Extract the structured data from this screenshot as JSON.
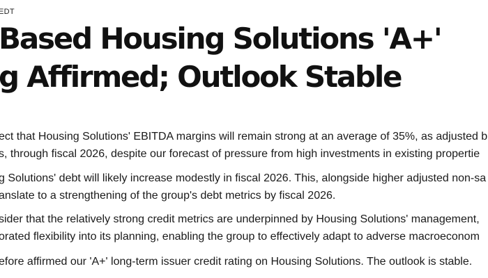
{
  "article": {
    "timestamp": "EDT",
    "headline": {
      "line1": "Based Housing Solutions 'A+'",
      "line2": "g Affirmed; Outlook Stable"
    },
    "paragraphs": [
      {
        "line1": "ect that Housing Solutions' EBITDA margins will remain strong at an average of 35%, as adjusted b",
        "line2": "s, through fiscal 2026, despite our forecast of pressure from high investments in existing propertie"
      },
      {
        "line1": "g Solutions' debt will likely increase modestly in fiscal 2026. This, alongside higher adjusted non-sa",
        "line2": "anslate to a strengthening of the group's debt metrics by fiscal 2026."
      },
      {
        "line1": "sider that the relatively strong credit metrics are underpinned by Housing Solutions' management,",
        "line2": "orated flexibility into its planning, enabling the group to effectively adapt to adverse macroeconom"
      },
      {
        "line1": "efore affirmed our 'A+' long-term issuer credit rating on Housing Solutions. The outlook is stable."
      }
    ]
  }
}
